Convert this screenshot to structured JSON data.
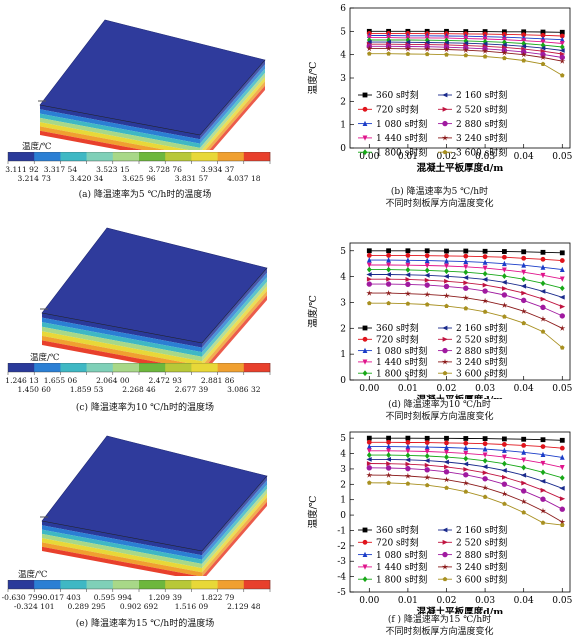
{
  "colors": [
    "#2a3a9a",
    "#2b7fd4",
    "#3fb8c4",
    "#7fd0b8",
    "#a8d888",
    "#6db73d",
    "#b8c838",
    "#e8d838",
    "#f0a030",
    "#e8402c"
  ],
  "charts": [
    {
      "id": "a",
      "colorbar_title": "温度/℃",
      "ticks_top": [
        "3.111 92",
        "3.317 54",
        "3.523 15",
        "3.728 76",
        "3.934 37"
      ],
      "ticks_bottom": [
        "3.214 73",
        "3.420 34",
        "3.625 96",
        "3.831 57",
        "4.037 18"
      ],
      "caption": "(a) 降温速率为5 ℃/h时的温度场"
    },
    {
      "id": "c",
      "colorbar_title": "温度/℃",
      "ticks_top": [
        "1.246 13",
        "1.655 06",
        "2.064 00",
        "2.472 93",
        "2.881 86"
      ],
      "ticks_bottom": [
        "1.450 60",
        "1.859 53",
        "2.268 46",
        "2.677 39",
        "3.086 32"
      ],
      "caption": "(c) 降温速率为10 ℃/h时的温度场"
    },
    {
      "id": "e",
      "colorbar_title": "温度/℃",
      "ticks_top": [
        "-0.630 799",
        "-0.017 403",
        "0.595 994",
        "1.209 39",
        "1.822 79"
      ],
      "ticks_bottom": [
        "-0.324 101",
        "0.289 295",
        "0.902 692",
        "1.516 09",
        "2.129 48"
      ],
      "caption": "(e) 降温速率为15 ℃/h时的温度场"
    }
  ],
  "chart_data": [
    {
      "type": "line",
      "id": "b",
      "xlabel": "混凝土平板厚度d/m",
      "ylabel": "温度/℃",
      "xlim": [
        -0.005,
        0.052
      ],
      "ylim": [
        0,
        6
      ],
      "xticks": [
        "0.00",
        "0.01",
        "0.02",
        "0.03",
        "0.04",
        "0.05"
      ],
      "yticks": [
        0,
        1,
        2,
        3,
        4,
        5,
        6
      ],
      "caption_line1": "(b) 降温速率为5 ℃/h时",
      "caption_line2": "不同时刻板厚方向温度变化",
      "x": [
        0,
        0.005,
        0.01,
        0.015,
        0.02,
        0.025,
        0.03,
        0.035,
        0.04,
        0.045,
        0.05
      ],
      "series": [
        {
          "name": "360 s时刻",
          "values": [
            5.0,
            5.0,
            5.0,
            5.0,
            5.0,
            4.99,
            4.99,
            4.98,
            4.98,
            4.97,
            4.96
          ]
        },
        {
          "name": "720 s时刻",
          "values": [
            4.91,
            4.91,
            4.91,
            4.9,
            4.9,
            4.89,
            4.88,
            4.87,
            4.85,
            4.83,
            4.8
          ]
        },
        {
          "name": "1 080 s时刻",
          "values": [
            4.82,
            4.82,
            4.81,
            4.81,
            4.8,
            4.79,
            4.77,
            4.75,
            4.72,
            4.68,
            4.64
          ]
        },
        {
          "name": "1 440 s时刻",
          "values": [
            4.73,
            4.73,
            4.72,
            4.72,
            4.71,
            4.69,
            4.67,
            4.64,
            4.6,
            4.55,
            4.48
          ]
        },
        {
          "name": "1 800 s时刻",
          "values": [
            4.63,
            4.63,
            4.63,
            4.62,
            4.61,
            4.59,
            4.56,
            4.53,
            4.48,
            4.41,
            4.33
          ]
        },
        {
          "name": "2 160 s时刻",
          "values": [
            4.54,
            4.54,
            4.53,
            4.52,
            4.51,
            4.49,
            4.46,
            4.42,
            4.36,
            4.28,
            4.18
          ]
        },
        {
          "name": "2 520 s时刻",
          "values": [
            4.45,
            4.45,
            4.44,
            4.43,
            4.42,
            4.39,
            4.36,
            4.31,
            4.24,
            4.15,
            4.03
          ]
        },
        {
          "name": "2 880 s时刻",
          "values": [
            4.36,
            4.36,
            4.35,
            4.34,
            4.32,
            4.29,
            4.25,
            4.19,
            4.12,
            4.01,
            3.88
          ]
        },
        {
          "name": "3 240 s时刻",
          "values": [
            4.26,
            4.26,
            4.25,
            4.24,
            4.22,
            4.19,
            4.15,
            4.08,
            4.0,
            3.88,
            3.72
          ]
        },
        {
          "name": "3 600 s时刻",
          "values": [
            4.04,
            4.04,
            4.03,
            4.02,
            4.0,
            3.97,
            3.92,
            3.85,
            3.75,
            3.6,
            3.11
          ]
        }
      ]
    },
    {
      "type": "line",
      "id": "d",
      "xlabel": "混凝土平板厚度d/m",
      "ylabel": "温度/℃",
      "xlim": [
        -0.005,
        0.052
      ],
      "ylim": [
        0,
        5.3
      ],
      "xticks": [
        "0.00",
        "0.01",
        "0.02",
        "0.03",
        "0.04",
        "0.05"
      ],
      "yticks": [
        0,
        1,
        2,
        3,
        4,
        5
      ],
      "caption_line1": "(d) 降温速率为10 ℃/h时",
      "caption_line2": "不同时刻板厚方向温度变化",
      "x": [
        0,
        0.005,
        0.01,
        0.015,
        0.02,
        0.025,
        0.03,
        0.035,
        0.04,
        0.045,
        0.05
      ],
      "series": [
        {
          "name": "360 s时刻",
          "values": [
            5.0,
            5.0,
            5.0,
            5.0,
            4.99,
            4.99,
            4.98,
            4.97,
            4.96,
            4.94,
            4.92
          ]
        },
        {
          "name": "720 s时刻",
          "values": [
            4.82,
            4.82,
            4.82,
            4.81,
            4.8,
            4.79,
            4.77,
            4.75,
            4.71,
            4.67,
            4.62
          ]
        },
        {
          "name": "1 080 s时刻",
          "values": [
            4.64,
            4.64,
            4.63,
            4.62,
            4.6,
            4.58,
            4.55,
            4.5,
            4.44,
            4.36,
            4.27
          ]
        },
        {
          "name": "1 440 s时刻",
          "values": [
            4.45,
            4.45,
            4.44,
            4.43,
            4.41,
            4.38,
            4.33,
            4.26,
            4.17,
            4.05,
            3.91
          ]
        },
        {
          "name": "1 800 s时刻",
          "values": [
            4.27,
            4.27,
            4.26,
            4.24,
            4.21,
            4.17,
            4.11,
            4.02,
            3.9,
            3.74,
            3.55
          ]
        },
        {
          "name": "2 160 s时刻",
          "values": [
            4.08,
            4.08,
            4.07,
            4.05,
            4.01,
            3.96,
            3.89,
            3.78,
            3.63,
            3.43,
            3.2
          ]
        },
        {
          "name": "2 520 s时刻",
          "values": [
            3.9,
            3.9,
            3.89,
            3.86,
            3.82,
            3.76,
            3.67,
            3.54,
            3.36,
            3.13,
            2.84
          ]
        },
        {
          "name": "2 880 s时刻",
          "values": [
            3.71,
            3.71,
            3.7,
            3.67,
            3.62,
            3.55,
            3.44,
            3.29,
            3.08,
            2.81,
            2.48
          ]
        },
        {
          "name": "3 240 s时刻",
          "values": [
            3.36,
            3.36,
            3.34,
            3.31,
            3.26,
            3.18,
            3.06,
            2.89,
            2.66,
            2.36,
            2.0
          ]
        },
        {
          "name": "3 600 s时刻",
          "values": [
            2.97,
            2.97,
            2.95,
            2.92,
            2.86,
            2.77,
            2.64,
            2.45,
            2.2,
            1.87,
            1.25
          ]
        }
      ]
    },
    {
      "type": "line",
      "id": "f",
      "xlabel": "混凝土平板厚度d/m",
      "ylabel": "温度/℃",
      "xlim": [
        -0.005,
        0.052
      ],
      "ylim": [
        -5,
        5.4
      ],
      "xticks": [
        "0.00",
        "0.01",
        "0.02",
        "0.03",
        "0.04",
        "0.05"
      ],
      "yticks": [
        -5,
        -4,
        -3,
        -2,
        -1,
        0,
        1,
        2,
        3,
        4,
        5
      ],
      "caption_line1": "(f ) 降温速率为15 ℃/h时",
      "caption_line2": "不同时刻板厚方向温度变化",
      "x": [
        0,
        0.005,
        0.01,
        0.015,
        0.02,
        0.025,
        0.03,
        0.035,
        0.04,
        0.045,
        0.05
      ],
      "series": [
        {
          "name": "360 s时刻",
          "values": [
            5.0,
            5.0,
            5.0,
            4.99,
            4.99,
            4.98,
            4.97,
            4.95,
            4.93,
            4.9,
            4.86
          ]
        },
        {
          "name": "720 s时刻",
          "values": [
            4.73,
            4.73,
            4.72,
            4.71,
            4.69,
            4.67,
            4.64,
            4.59,
            4.53,
            4.45,
            4.35
          ]
        },
        {
          "name": "1 080 s时刻",
          "values": [
            4.45,
            4.45,
            4.44,
            4.42,
            4.39,
            4.35,
            4.29,
            4.2,
            4.08,
            3.93,
            3.75
          ]
        },
        {
          "name": "1 440 s时刻",
          "values": [
            4.18,
            4.18,
            4.16,
            4.13,
            4.08,
            4.01,
            3.91,
            3.77,
            3.59,
            3.37,
            3.1
          ]
        },
        {
          "name": "1 800 s时刻",
          "values": [
            3.9,
            3.9,
            3.88,
            3.84,
            3.77,
            3.67,
            3.53,
            3.34,
            3.09,
            2.78,
            2.42
          ]
        },
        {
          "name": "2 160 s时刻",
          "values": [
            3.62,
            3.62,
            3.59,
            3.54,
            3.45,
            3.32,
            3.14,
            2.9,
            2.59,
            2.2,
            1.74
          ]
        },
        {
          "name": "2 520 s时刻",
          "values": [
            3.35,
            3.34,
            3.31,
            3.24,
            3.13,
            2.97,
            2.75,
            2.46,
            2.08,
            1.61,
            1.06
          ]
        },
        {
          "name": "2 880 s时刻",
          "values": [
            3.07,
            3.06,
            3.02,
            2.94,
            2.81,
            2.62,
            2.36,
            2.01,
            1.57,
            1.03,
            0.38
          ]
        },
        {
          "name": "3 240 s时刻",
          "values": [
            2.6,
            2.59,
            2.54,
            2.45,
            2.3,
            2.08,
            1.78,
            1.38,
            0.88,
            0.27,
            -0.45
          ]
        },
        {
          "name": "3 600 s时刻",
          "values": [
            2.1,
            2.09,
            2.04,
            1.94,
            1.77,
            1.52,
            1.18,
            0.73,
            0.17,
            -0.5,
            -0.65
          ]
        }
      ]
    }
  ],
  "series_style": [
    {
      "color": "#000000",
      "marker": "square"
    },
    {
      "color": "#e0141c",
      "marker": "circle"
    },
    {
      "color": "#1a3cc8",
      "marker": "triangle-up"
    },
    {
      "color": "#e0148c",
      "marker": "triangle-down"
    },
    {
      "color": "#18a818",
      "marker": "diamond"
    },
    {
      "color": "#1a2a8c",
      "marker": "triangle-left"
    },
    {
      "color": "#c01440",
      "marker": "triangle-right"
    },
    {
      "color": "#a01aa0",
      "marker": "hexagon"
    },
    {
      "color": "#8c1c1c",
      "marker": "star"
    },
    {
      "color": "#a89020",
      "marker": "pentagon"
    }
  ]
}
